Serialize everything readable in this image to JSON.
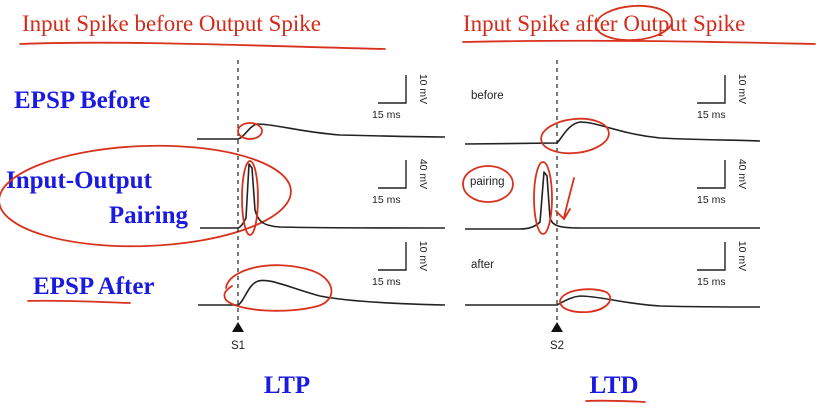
{
  "titles": {
    "left": "Input Spike before Output Spike",
    "right_pre": "Input Spike ",
    "right_mid": "after",
    "right_post": " Output Spike"
  },
  "row_labels": {
    "epsp_before": "EPSP Before",
    "pairing_line1": "Input-Output",
    "pairing_line2": "Pairing",
    "epsp_after": "EPSP After"
  },
  "panel_labels": {
    "before": "before",
    "pairing": "pairing",
    "after": "after"
  },
  "scale_bars": {
    "small_mv": "10 mV",
    "large_mv": "40 mV",
    "time": "15 ms"
  },
  "stimulus_markers": {
    "left": "S1",
    "right": "S2"
  },
  "results": {
    "left": "LTP",
    "right": "LTD"
  },
  "colors": {
    "label_blue": "#1a1ae0",
    "annotation_red": "#d8321f",
    "trace": "#222222"
  }
}
